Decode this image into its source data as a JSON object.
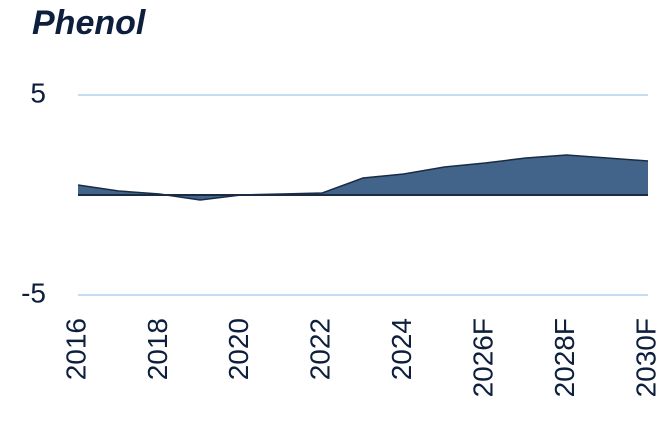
{
  "chart_data": {
    "type": "area",
    "title": "Phenol",
    "categories": [
      "2016",
      null,
      "2018",
      null,
      "2020",
      null,
      "2022",
      null,
      "2024",
      null,
      "2026F",
      null,
      "2028F",
      null,
      "2030F"
    ],
    "values": [
      0.5,
      0.2,
      0.05,
      -0.25,
      0,
      0.05,
      0.1,
      0.85,
      1.05,
      1.4,
      1.6,
      1.85,
      2.0,
      1.85,
      1.7
    ],
    "color": "#43648a",
    "line_color": "#1a2b44",
    "ylim": [
      -5,
      5
    ],
    "yticks": [
      -5,
      5
    ],
    "grid": true,
    "grid_color": "#c5dcf2"
  }
}
